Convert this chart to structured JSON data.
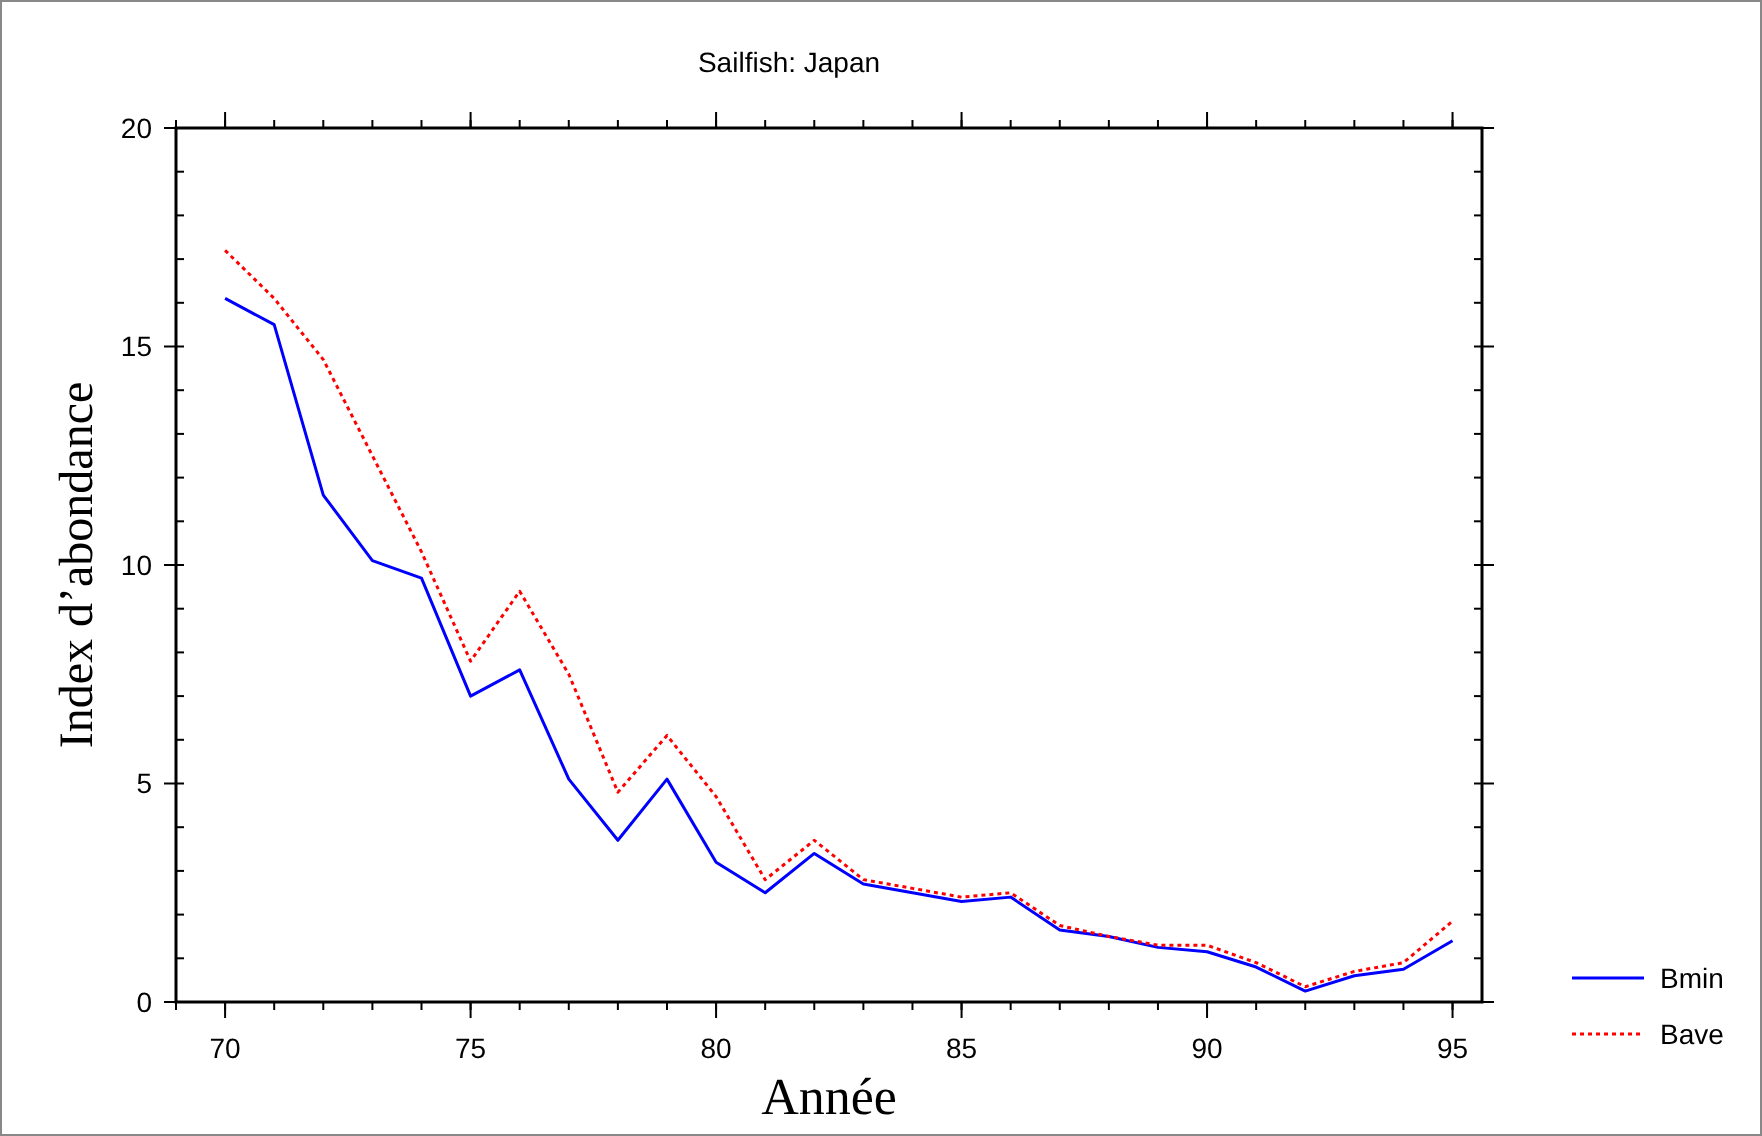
{
  "chart_data": {
    "type": "line",
    "title": "Sailfish: Japan",
    "xlabel": "Année",
    "ylabel": "Index d’abondance",
    "x": [
      70,
      71,
      72,
      73,
      74,
      75,
      76,
      77,
      78,
      79,
      80,
      81,
      82,
      83,
      84,
      85,
      86,
      87,
      88,
      89,
      90,
      91,
      92,
      93,
      94,
      95
    ],
    "series": [
      {
        "name": "Bmin",
        "color": "#0000ff",
        "line_style": "solid",
        "values": [
          16.1,
          15.5,
          11.6,
          10.1,
          9.7,
          7.0,
          7.6,
          5.1,
          3.7,
          5.1,
          3.2,
          2.5,
          3.4,
          2.7,
          2.5,
          2.3,
          2.4,
          1.65,
          1.5,
          1.25,
          1.15,
          0.8,
          0.25,
          0.6,
          0.75,
          1.4
        ]
      },
      {
        "name": "Bave",
        "color": "#ff0000",
        "line_style": "dotted",
        "values": [
          17.2,
          16.1,
          14.7,
          12.5,
          10.3,
          7.8,
          9.4,
          7.5,
          4.8,
          6.1,
          4.7,
          2.8,
          3.7,
          2.8,
          2.6,
          2.4,
          2.5,
          1.75,
          1.5,
          1.3,
          1.3,
          0.9,
          0.35,
          0.7,
          0.9,
          1.85
        ]
      }
    ],
    "xlim": [
      69,
      95.6
    ],
    "xticks": [
      70,
      75,
      80,
      85,
      90,
      95
    ],
    "ylim": [
      0,
      20
    ],
    "yticks": [
      0,
      5,
      10,
      15,
      20
    ],
    "grid": false,
    "legend": "bottom right",
    "marker": "none"
  }
}
